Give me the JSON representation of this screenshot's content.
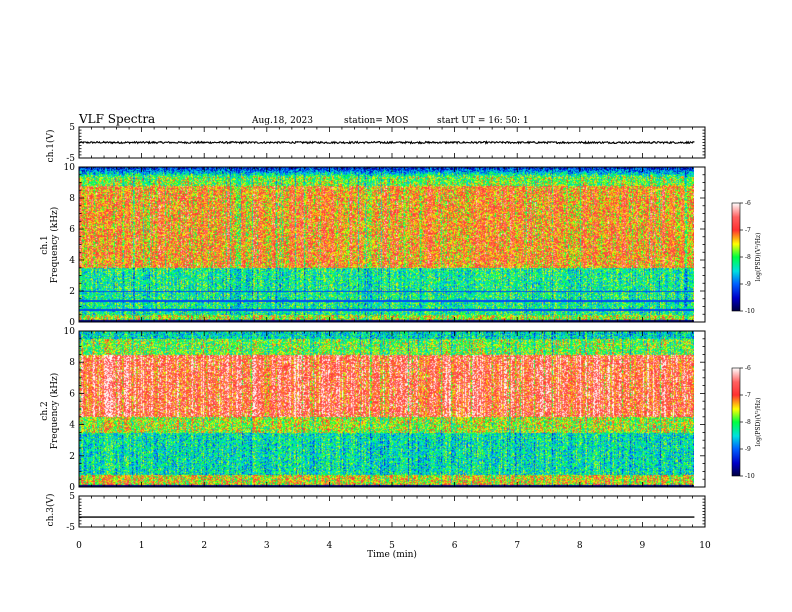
{
  "header": {
    "title": "VLF Spectra",
    "date": "Aug.18, 2023",
    "station": "station= MOS",
    "start_ut": "start  UT =   16: 50: 1"
  },
  "chart_data": [
    {
      "type": "line",
      "panel": "ch1-waveform",
      "ylabel": "ch.1(V)",
      "ylim": [
        -5,
        5
      ],
      "yticks": [
        5,
        -5
      ],
      "description_values": {
        "baseline_V": 0.0,
        "amplitude_V": 0.3
      }
    },
    {
      "type": "heatmap",
      "panel": "ch1-spectrogram",
      "ylabel_top": "ch.1",
      "ylabel": "Frequency (kHz)",
      "ylim": [
        0,
        10
      ],
      "yticks": [
        0,
        2,
        4,
        6,
        8,
        10
      ],
      "xlim": [
        0,
        10
      ],
      "colorbar": {
        "label": "log(PSD)(V²/Hz)",
        "ticks": [
          "-6",
          "-7",
          "-8",
          "-9",
          "-10"
        ],
        "range": [
          -10,
          -6
        ]
      }
    },
    {
      "type": "heatmap",
      "panel": "ch2-spectrogram",
      "ylabel_top": "ch.2",
      "ylabel": "Frequency (kHz)",
      "ylim": [
        0,
        10
      ],
      "yticks": [
        0,
        2,
        4,
        6,
        8,
        10
      ],
      "xlim": [
        0,
        10
      ],
      "colorbar": {
        "label": "log(PSD)(V²/Hz)",
        "ticks": [
          "-6",
          "-7",
          "-8",
          "-9",
          "-10"
        ],
        "range": [
          -10,
          -6
        ]
      }
    },
    {
      "type": "line",
      "panel": "ch3-waveform",
      "ylabel": "ch.3(V)",
      "ylim": [
        -5,
        5
      ],
      "yticks": [
        5,
        -5
      ],
      "description_values": {
        "baseline_V": -1.8,
        "amplitude_V": 0.0
      }
    }
  ],
  "xaxis": {
    "label": "Time  (min)",
    "xlim": [
      0,
      10
    ],
    "ticks": [
      "0",
      "1",
      "2",
      "3",
      "4",
      "5",
      "6",
      "7",
      "8",
      "9",
      "10"
    ],
    "data_end_min": 9.83
  },
  "colors": {
    "colormap": [
      "#00003a",
      "#0000c8",
      "#0060ff",
      "#00e0e0",
      "#00ff40",
      "#ffff00",
      "#ff4040",
      "#ff2020",
      "#ffffff"
    ]
  }
}
